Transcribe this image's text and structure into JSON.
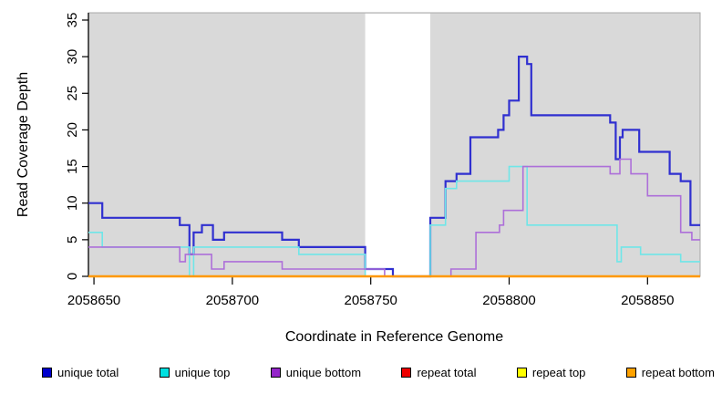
{
  "chart_data": {
    "type": "line",
    "subtype": "step-after",
    "title": "",
    "xlabel": "Coordinate in Reference Genome",
    "ylabel": "Read Coverage Depth",
    "xlim": [
      2058648,
      2058869
    ],
    "ylim": [
      0,
      35
    ],
    "x_ticks": [
      2058650,
      2058700,
      2058750,
      2058800,
      2058850
    ],
    "y_ticks": [
      0,
      5,
      10,
      15,
      20,
      25,
      30,
      35
    ],
    "grid": false,
    "legend_position": "bottom",
    "plot_bg_color": "#d9d9d9",
    "gap_region": {
      "from": 2058748,
      "to": 2058771.5,
      "color": "#ffffff"
    },
    "series": [
      {
        "name": "unique total",
        "color": "#3030d0",
        "legend_color": "#0000cc",
        "width": 2.2,
        "points": [
          [
            2058648,
            10
          ],
          [
            2058653,
            8
          ],
          [
            2058681,
            7
          ],
          [
            2058684.5,
            3
          ],
          [
            2058686,
            6
          ],
          [
            2058689,
            7
          ],
          [
            2058693,
            5
          ],
          [
            2058697,
            6
          ],
          [
            2058718,
            5
          ],
          [
            2058724,
            4
          ],
          [
            2058748,
            1
          ],
          [
            2058758,
            0
          ],
          [
            2058771.5,
            8
          ],
          [
            2058777,
            13
          ],
          [
            2058781,
            14
          ],
          [
            2058786,
            19
          ],
          [
            2058796,
            20
          ],
          [
            2058798,
            22
          ],
          [
            2058800,
            24
          ],
          [
            2058803.5,
            30
          ],
          [
            2058806.5,
            29
          ],
          [
            2058808,
            22
          ],
          [
            2058836.5,
            21
          ],
          [
            2058838.5,
            16
          ],
          [
            2058840,
            19
          ],
          [
            2058841,
            20
          ],
          [
            2058847,
            17
          ],
          [
            2058858,
            14
          ],
          [
            2058862,
            13
          ],
          [
            2058865.5,
            7
          ]
        ]
      },
      {
        "name": "unique top",
        "color": "#6fe6e8",
        "legend_color": "#00e0e0",
        "width": 1.6,
        "points": [
          [
            2058648,
            6
          ],
          [
            2058653,
            4
          ],
          [
            2058684.5,
            0
          ],
          [
            2058686,
            4
          ],
          [
            2058724,
            3
          ],
          [
            2058748,
            0
          ],
          [
            2058771.5,
            7
          ],
          [
            2058777,
            12
          ],
          [
            2058781,
            13
          ],
          [
            2058800,
            15
          ],
          [
            2058806.5,
            7
          ],
          [
            2058839,
            2
          ],
          [
            2058840.5,
            4
          ],
          [
            2058847.5,
            3
          ],
          [
            2058862,
            2
          ]
        ]
      },
      {
        "name": "unique bottom",
        "color": "#ad6fd9",
        "legend_color": "#9425c9",
        "width": 1.6,
        "points": [
          [
            2058648,
            4
          ],
          [
            2058681,
            2
          ],
          [
            2058683,
            3
          ],
          [
            2058692.5,
            1
          ],
          [
            2058697,
            2
          ],
          [
            2058718,
            1
          ],
          [
            2058755,
            0
          ],
          [
            2058779,
            1
          ],
          [
            2058788,
            6
          ],
          [
            2058796.5,
            7
          ],
          [
            2058798,
            9
          ],
          [
            2058805,
            15
          ],
          [
            2058836.5,
            14
          ],
          [
            2058840,
            16
          ],
          [
            2058844,
            14
          ],
          [
            2058850,
            11
          ],
          [
            2058862,
            6
          ],
          [
            2058866,
            5
          ]
        ]
      },
      {
        "name": "repeat total",
        "color": "#dd0000",
        "legend_color": "#ee0000",
        "width": 1.6,
        "points": [
          [
            2058648,
            0
          ]
        ]
      },
      {
        "name": "repeat top",
        "color": "#ffff00",
        "legend_color": "#ffff00",
        "width": 1.6,
        "points": [
          [
            2058648,
            0
          ]
        ]
      },
      {
        "name": "repeat bottom",
        "color": "#ff9800",
        "legend_color": "#ffa200",
        "width": 2.4,
        "points": [
          [
            2058648,
            0
          ]
        ]
      }
    ]
  }
}
